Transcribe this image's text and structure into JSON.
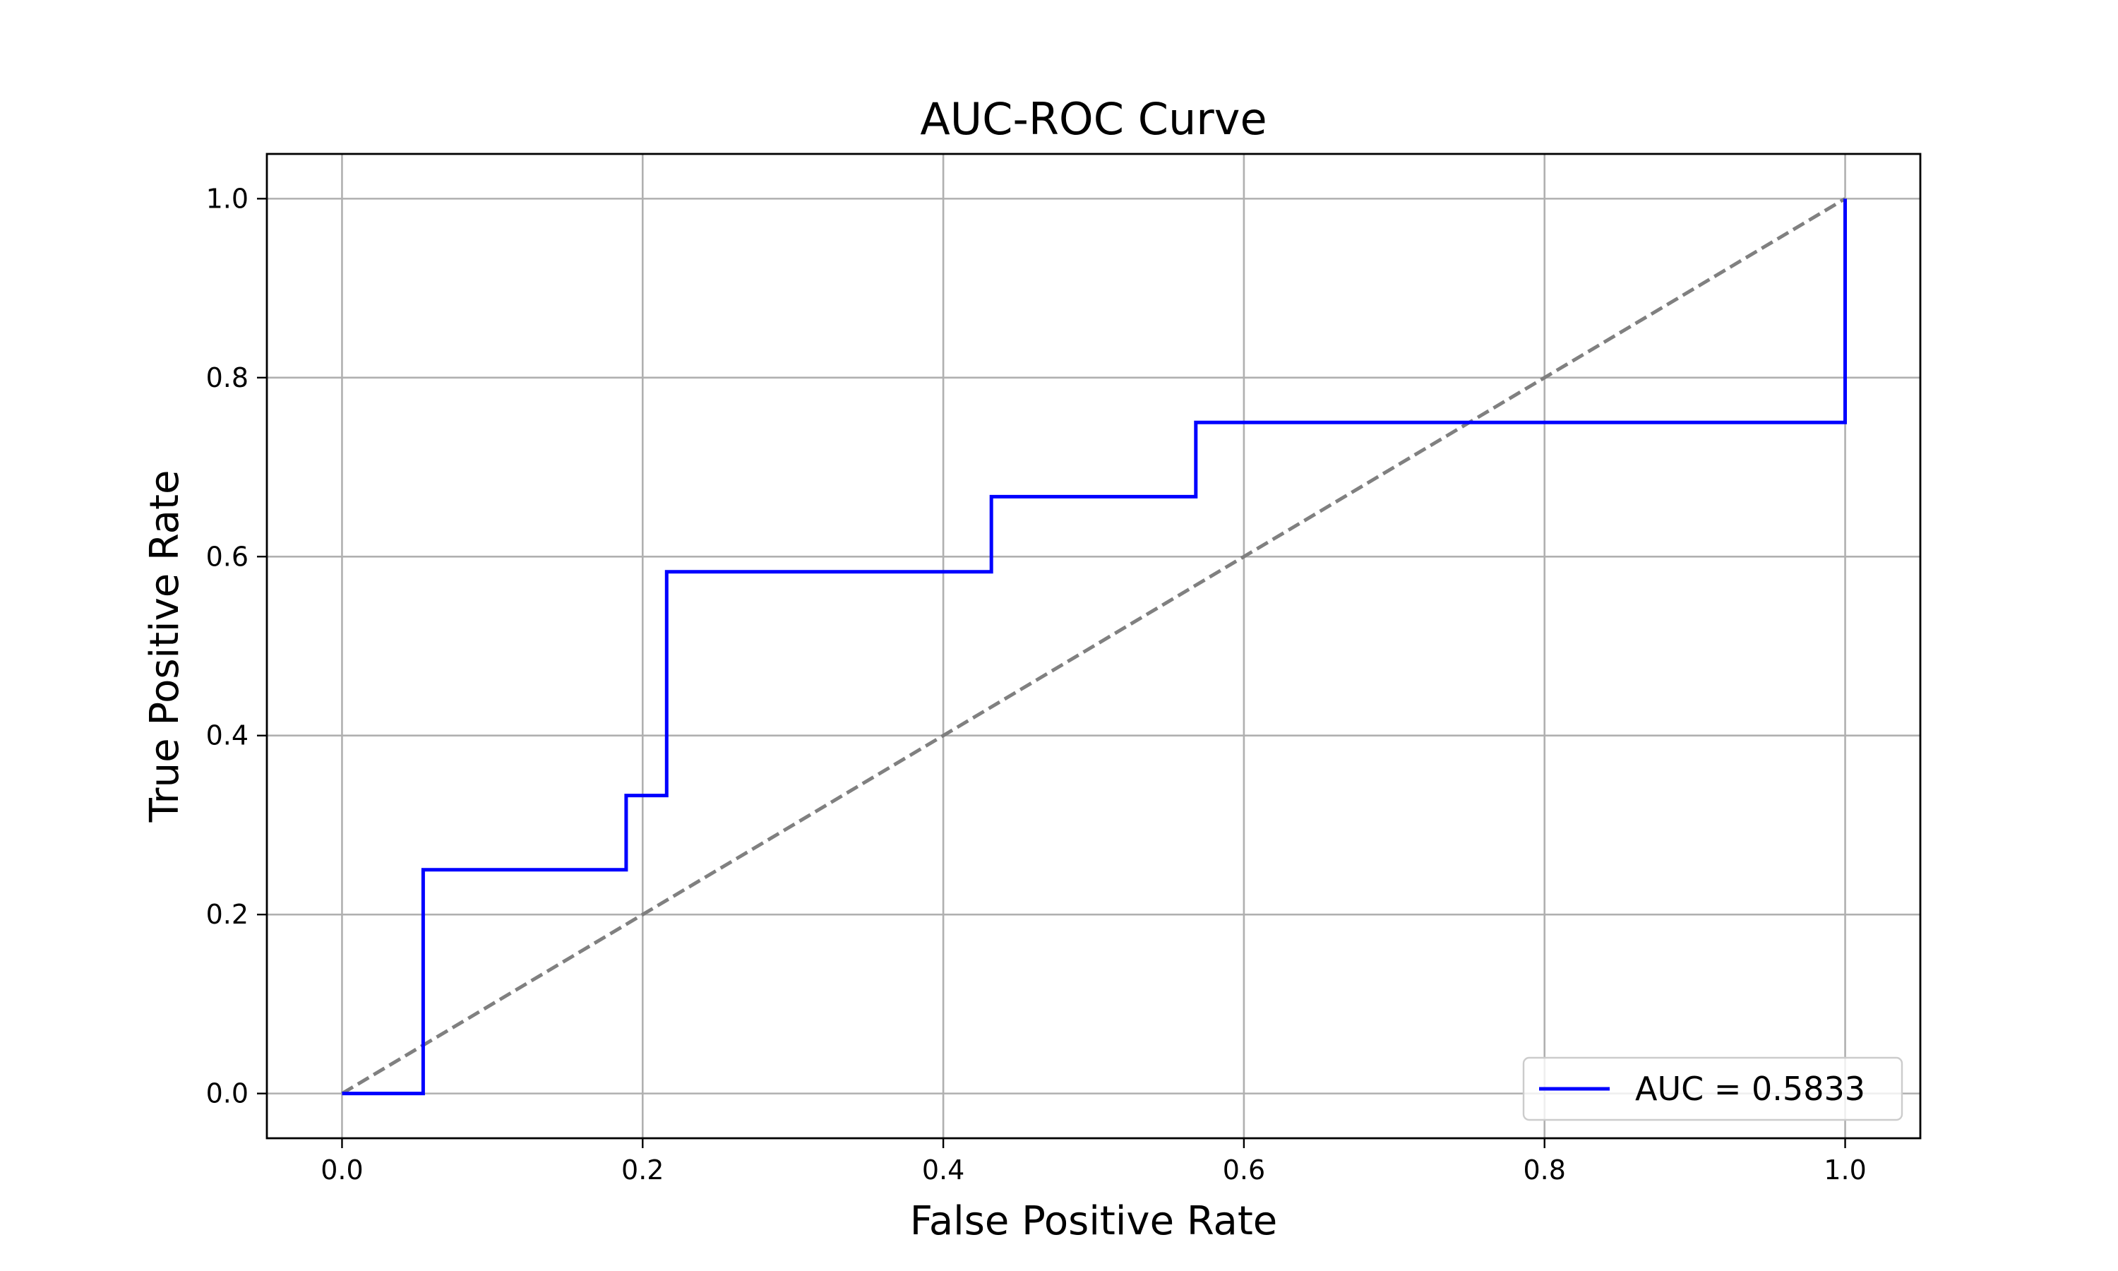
{
  "chart_data": {
    "type": "line",
    "title": "AUC-ROC Curve",
    "xlabel": "False Positive Rate",
    "ylabel": "True Positive Rate",
    "xlim": [
      -0.05,
      1.05
    ],
    "ylim": [
      -0.05,
      1.05
    ],
    "xticks": [
      0.0,
      0.2,
      0.4,
      0.6,
      0.8,
      1.0
    ],
    "yticks": [
      0.0,
      0.2,
      0.4,
      0.6,
      0.8,
      1.0
    ],
    "xtick_labels": [
      "0.0",
      "0.2",
      "0.4",
      "0.6",
      "0.8",
      "1.0"
    ],
    "ytick_labels": [
      "0.0",
      "0.2",
      "0.4",
      "0.6",
      "0.8",
      "1.0"
    ],
    "grid": true,
    "legend_position": "bottom-right",
    "series": [
      {
        "name": "AUC = 0.5833",
        "color": "#0000ff",
        "style": "solid",
        "x": [
          0.0,
          0.054,
          0.054,
          0.189,
          0.189,
          0.216,
          0.216,
          0.432,
          0.432,
          0.568,
          0.568,
          1.0,
          1.0
        ],
        "y": [
          0.0,
          0.0,
          0.25,
          0.25,
          0.333,
          0.333,
          0.583,
          0.583,
          0.667,
          0.667,
          0.75,
          0.75,
          1.0
        ]
      },
      {
        "color": "#808080",
        "style": "dashed",
        "x": [
          0.0,
          1.0
        ],
        "y": [
          0.0,
          1.0
        ]
      }
    ]
  }
}
